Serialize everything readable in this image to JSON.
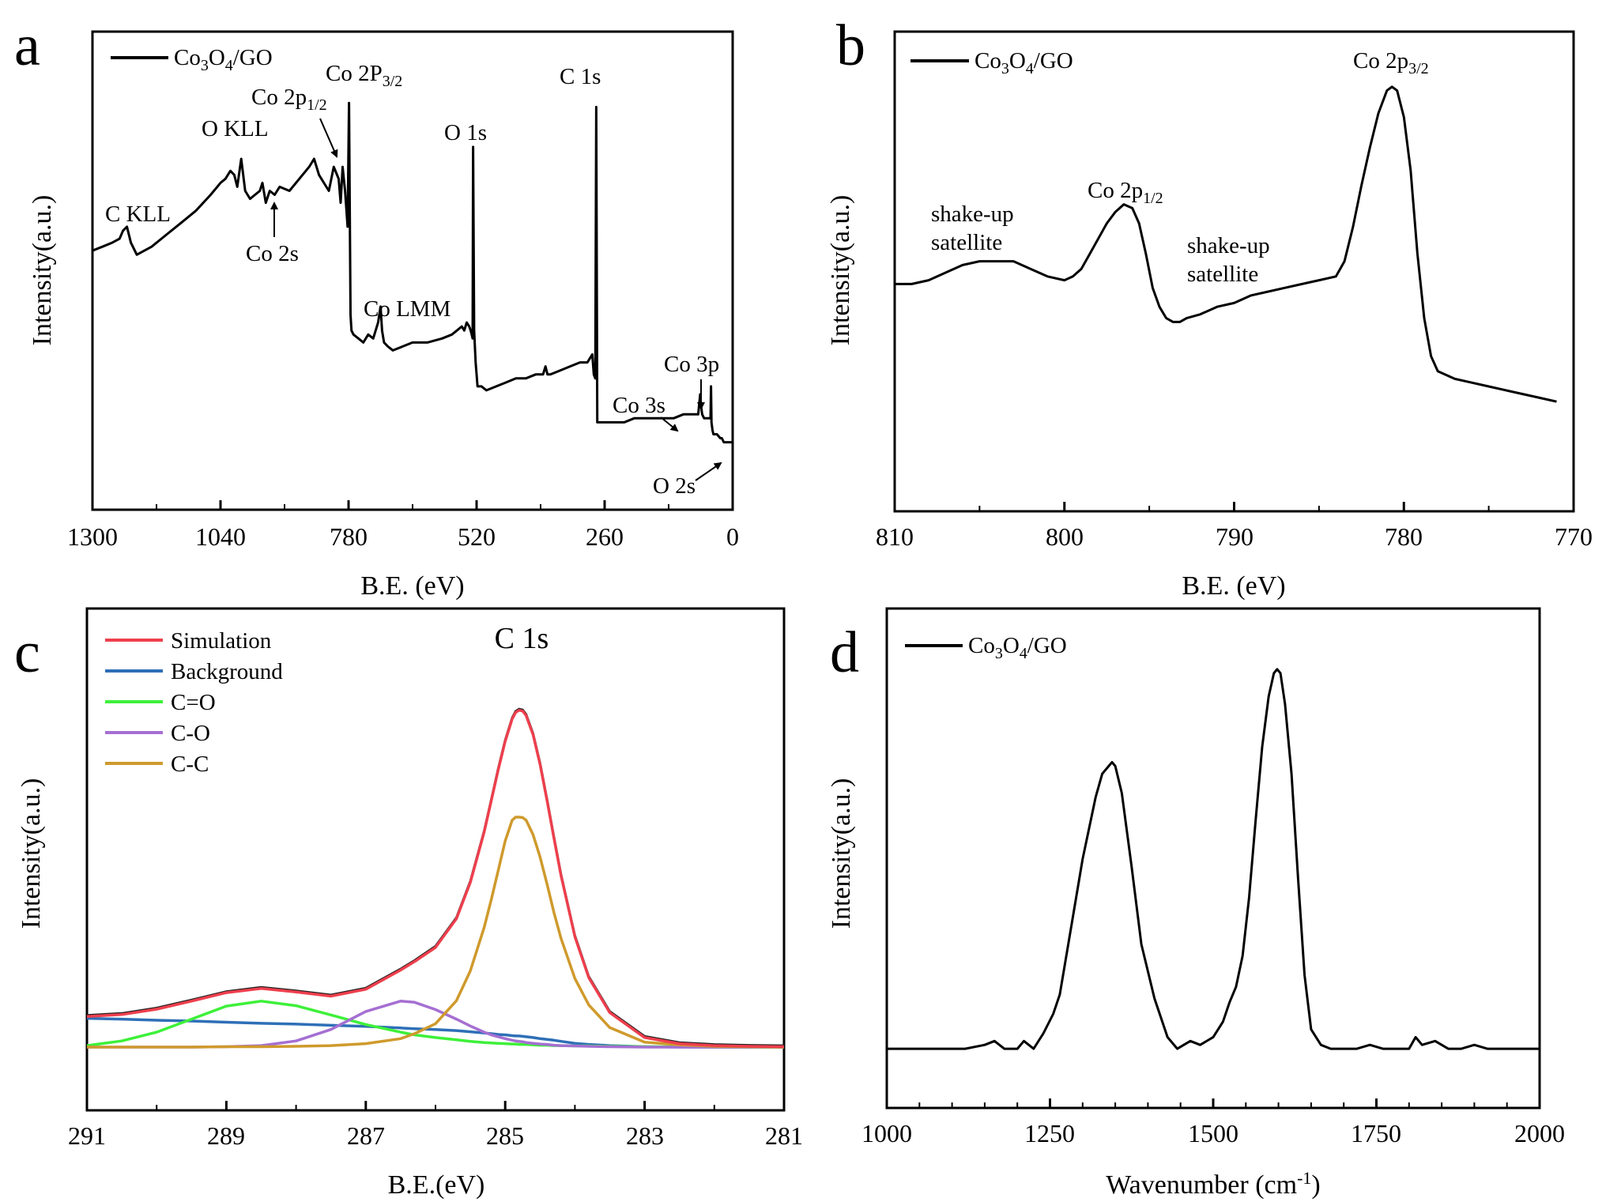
{
  "figure": {
    "panels": [
      "a",
      "b",
      "c",
      "d"
    ]
  },
  "chart_data": [
    {
      "id": "a",
      "type": "line",
      "panel_label": "a",
      "xlabel": "B.E. (eV)",
      "ylabel": "Intensity(a.u.)",
      "xlim": [
        1300,
        0
      ],
      "ylim": [
        0,
        100
      ],
      "x_ticks": [
        1300,
        1040,
        780,
        520,
        260,
        0
      ],
      "y_ticks": [],
      "legend": {
        "position": "top-left",
        "entries": [
          {
            "label": "Co3O4/GO",
            "color": "#000000"
          }
        ]
      },
      "series": [
        {
          "name": "Co3O4/GO",
          "color": "#000000",
          "x": [
            1300,
            1280,
            1260,
            1245,
            1238,
            1230,
            1222,
            1210,
            1180,
            1150,
            1120,
            1090,
            1060,
            1040,
            1030,
            1020,
            1012,
            1006,
            998,
            990,
            980,
            970,
            960,
            955,
            948,
            940,
            930,
            920,
            900,
            880,
            860,
            850,
            840,
            830,
            820,
            810,
            800,
            796,
            792,
            787,
            782,
            779,
            776,
            774,
            770,
            760,
            750,
            740,
            730,
            720,
            715,
            712,
            708,
            700,
            690,
            670,
            650,
            620,
            590,
            570,
            560,
            550,
            545,
            540,
            535,
            532,
            530,
            528,
            527,
            525,
            522,
            518,
            510,
            500,
            480,
            460,
            440,
            420,
            400,
            385,
            380,
            376,
            370,
            350,
            330,
            310,
            295,
            290,
            285,
            282,
            279,
            277,
            275,
            270,
            255,
            240,
            220,
            200,
            180,
            160,
            140,
            120,
            100,
            80,
            70,
            66,
            64,
            62,
            58,
            50,
            45,
            44,
            43,
            41,
            39,
            36,
            32,
            25,
            22,
            18,
            12,
            5,
            0
          ],
          "y": [
            56,
            57,
            58,
            59,
            61,
            62,
            58,
            55,
            57,
            60,
            63,
            66,
            70,
            73,
            74,
            76,
            75,
            72,
            79,
            71,
            69,
            70,
            71,
            73,
            68,
            71,
            70,
            72,
            71,
            74,
            77,
            79,
            75,
            73,
            71,
            77,
            74,
            68,
            77,
            71,
            62,
            93,
            40,
            36,
            35,
            34,
            33,
            35,
            34,
            38,
            42,
            36,
            33,
            32,
            31,
            32,
            33,
            33,
            34,
            35,
            36,
            37,
            36,
            38,
            37,
            36,
            35,
            34,
            82,
            36,
            28,
            22,
            22,
            21,
            22,
            23,
            24,
            24,
            25,
            25,
            27,
            25,
            25,
            26,
            27,
            28,
            28,
            29,
            30,
            25,
            24,
            92,
            13,
            13,
            13,
            13,
            13,
            14,
            14,
            14,
            14,
            14,
            15,
            15,
            15,
            20,
            17,
            15,
            14,
            14,
            14,
            22,
            13,
            11,
            10,
            10,
            10,
            9,
            9,
            8,
            8,
            8,
            8
          ]
        }
      ],
      "annotations": [
        {
          "text": "C KLL",
          "x": 1240,
          "y": 63
        },
        {
          "text": "O KLL",
          "x": 1020,
          "y": 80
        },
        {
          "text": "Co 2s",
          "x": 960,
          "y": 57
        },
        {
          "text": "Co 2p1/2",
          "x": 800,
          "y": 84
        },
        {
          "text": "Co 2P3/2",
          "x": 780,
          "y": 95
        },
        {
          "text": "Co LMM",
          "x": 720,
          "y": 42
        },
        {
          "text": "O 1s",
          "x": 520,
          "y": 83
        },
        {
          "text": "C 1s",
          "x": 270,
          "y": 95
        },
        {
          "text": "Co 3s",
          "x": 100,
          "y": 22
        },
        {
          "text": "Co 3p",
          "x": 100,
          "y": 32
        },
        {
          "text": "O 2s",
          "x": 80,
          "y": 5
        }
      ]
    },
    {
      "id": "b",
      "type": "line",
      "panel_label": "b",
      "xlabel": "B.E. (eV)",
      "ylabel": "Intensity(a.u.)",
      "xlim": [
        810,
        770
      ],
      "ylim": [
        0,
        100
      ],
      "x_ticks": [
        810,
        800,
        790,
        780,
        770
      ],
      "y_ticks": [],
      "legend": {
        "position": "top-left",
        "entries": [
          {
            "label": "Co3O4/GO",
            "color": "#000000"
          }
        ]
      },
      "series": [
        {
          "name": "Co3O4/GO",
          "color": "#000000",
          "x": [
            810,
            809,
            808,
            807,
            806,
            805,
            804,
            803,
            802,
            801,
            800,
            799.5,
            799,
            798.5,
            798,
            797.5,
            797,
            796.5,
            796,
            795.6,
            795.2,
            794.8,
            794.4,
            794,
            793.6,
            793.2,
            792.8,
            792,
            791,
            790,
            789,
            788,
            787,
            786,
            785,
            784,
            783.5,
            783,
            782.5,
            782,
            781.5,
            781,
            780.7,
            780.4,
            780,
            779.6,
            779.2,
            778.8,
            778.4,
            778,
            777,
            776,
            775,
            774,
            773,
            772,
            771
          ],
          "y": [
            47,
            47,
            48,
            50,
            52,
            53,
            53,
            53,
            51,
            49,
            48,
            49,
            51,
            55,
            59,
            63,
            66,
            68,
            67,
            63,
            55,
            46,
            41,
            38,
            37,
            37,
            38,
            39,
            41,
            42,
            44,
            45,
            46,
            47,
            48,
            49,
            53,
            62,
            73,
            83,
            92,
            98,
            99,
            98,
            91,
            77,
            55,
            38,
            28,
            24,
            22,
            21,
            20,
            19,
            18,
            17,
            16
          ]
        }
      ],
      "annotations": [
        {
          "text": "shake-up satellite",
          "x": 803.5,
          "y": 64
        },
        {
          "text": "Co 2p1/2",
          "x": 796,
          "y": 75
        },
        {
          "text": "shake-up satellite",
          "x": 788,
          "y": 57
        },
        {
          "text": "Co 2p3/2",
          "x": 781,
          "y": 105
        }
      ]
    },
    {
      "id": "c",
      "type": "line",
      "panel_label": "c",
      "title": "C 1s",
      "xlabel": "B.E.(eV)",
      "ylabel": "Intensity(a.u.)",
      "xlim": [
        291,
        281
      ],
      "ylim": [
        0,
        100
      ],
      "x_ticks": [
        291,
        289,
        287,
        285,
        283,
        281
      ],
      "y_ticks": [],
      "legend": {
        "position": "top-left",
        "entries": [
          {
            "label": "Simulation",
            "color": "#ee3f4d"
          },
          {
            "label": "Background",
            "color": "#2e6fb7"
          },
          {
            "label": "C=O",
            "color": "#3ef03a"
          },
          {
            "label": "C-O",
            "color": "#a56fd2"
          },
          {
            "label": "C-C",
            "color": "#cf9a2c"
          }
        ]
      },
      "x_grid": [
        291,
        290.5,
        290,
        289.5,
        289,
        288.5,
        288,
        287.5,
        287,
        286.5,
        286.3,
        286,
        285.7,
        285.5,
        285.3,
        285.2,
        285.1,
        285,
        284.9,
        284.85,
        284.8,
        284.75,
        284.7,
        284.6,
        284.5,
        284.4,
        284.3,
        284.2,
        284,
        283.8,
        283.5,
        283,
        282.5,
        282,
        281.5,
        281
      ],
      "series": [
        {
          "name": "Simulation",
          "color": "#ee3f4d",
          "y": [
            8.0,
            8.5,
            9.9,
            12.0,
            14.2,
            15.3,
            14.4,
            13.3,
            15.1,
            20.1,
            22.3,
            26.0,
            33.5,
            43.0,
            56.2,
            64.3,
            72.4,
            79.8,
            85.6,
            87.3,
            87.9,
            87.7,
            86.5,
            81.5,
            73.8,
            64.4,
            54.5,
            44.8,
            28.8,
            18.1,
            9.0,
            2.5,
            0.9,
            0.4,
            0.2,
            0.1
          ]
        },
        {
          "name": "Background",
          "color": "#2e6fb7",
          "y": [
            7.5,
            7.3,
            7.0,
            6.8,
            6.5,
            6.2,
            6.0,
            5.7,
            5.4,
            5.0,
            4.8,
            4.6,
            4.3,
            4.0,
            3.7,
            3.5,
            3.3,
            3.2,
            3.0,
            2.9,
            2.9,
            2.8,
            2.7,
            2.5,
            2.2,
            2.0,
            1.8,
            1.5,
            1.0,
            0.7,
            0.4,
            0.1,
            0.0,
            0.0,
            0.0,
            0.0
          ]
        },
        {
          "name": "C=O",
          "color": "#3ef03a",
          "y": [
            0.4,
            1.6,
            3.9,
            7.3,
            10.7,
            12.0,
            10.8,
            8.4,
            5.9,
            3.9,
            3.2,
            2.5,
            1.9,
            1.5,
            1.2,
            1.1,
            1.0,
            0.9,
            0.8,
            0.8,
            0.7,
            0.7,
            0.7,
            0.6,
            0.5,
            0.5,
            0.4,
            0.4,
            0.3,
            0.3,
            0.2,
            0.1,
            0.1,
            0.0,
            0.0,
            0.0
          ]
        },
        {
          "name": "C-O",
          "color": "#a56fd2",
          "y": [
            0.0,
            0.0,
            0.0,
            0.0,
            0.1,
            0.4,
            1.6,
            4.6,
            9.3,
            12.0,
            11.7,
            9.8,
            7.3,
            5.5,
            3.9,
            3.2,
            2.7,
            2.2,
            1.8,
            1.6,
            1.5,
            1.4,
            1.2,
            1.0,
            0.8,
            0.7,
            0.5,
            0.4,
            0.3,
            0.2,
            0.1,
            0.0,
            0.0,
            0.0,
            0.0,
            0.0
          ]
        },
        {
          "name": "C-C",
          "color": "#cf9a2c",
          "y": [
            0.0,
            0.0,
            0.0,
            0.0,
            0.1,
            0.1,
            0.2,
            0.4,
            0.9,
            2.2,
            3.5,
            6.1,
            12.1,
            19.9,
            31.3,
            38.5,
            46.1,
            53.8,
            59.2,
            60.0,
            60.0,
            59.9,
            59.2,
            55.4,
            49.6,
            42.6,
            35.1,
            28.4,
            17.9,
            11.0,
            5.1,
            1.3,
            0.6,
            0.2,
            0.1,
            0.0
          ]
        }
      ]
    },
    {
      "id": "d",
      "type": "line",
      "panel_label": "d",
      "xlabel": "Wavenumber (cm-1)",
      "ylabel": "Intensity(a.u.)",
      "xlim": [
        1000,
        2000
      ],
      "ylim": [
        0,
        100
      ],
      "x_ticks": [
        1000,
        1250,
        1500,
        1750,
        2000
      ],
      "y_ticks": [],
      "legend": {
        "position": "top-left",
        "entries": [
          {
            "label": "Co3O4/GO",
            "color": "#000000"
          }
        ]
      },
      "series": [
        {
          "name": "Co3O4/GO",
          "color": "#000000",
          "x": [
            1000,
            1030,
            1060,
            1090,
            1120,
            1150,
            1165,
            1180,
            1200,
            1210,
            1225,
            1240,
            1255,
            1265,
            1280,
            1300,
            1320,
            1330,
            1340,
            1345,
            1350,
            1360,
            1375,
            1390,
            1410,
            1430,
            1445,
            1455,
            1465,
            1480,
            1500,
            1515,
            1525,
            1535,
            1545,
            1555,
            1565,
            1575,
            1585,
            1593,
            1598,
            1603,
            1610,
            1620,
            1630,
            1640,
            1650,
            1665,
            1680,
            1700,
            1720,
            1740,
            1760,
            1780,
            1800,
            1810,
            1820,
            1840,
            1860,
            1880,
            1900,
            1920,
            1940,
            1960,
            1980,
            2000
          ],
          "y": [
            1,
            1,
            1,
            1,
            1,
            2,
            3,
            1,
            1,
            3,
            1,
            5,
            10,
            15,
            30,
            50,
            66,
            72,
            74,
            75,
            74,
            67,
            48,
            28,
            14,
            4,
            1,
            2,
            3,
            2,
            4,
            8,
            13,
            17,
            25,
            40,
            60,
            79,
            92,
            98,
            99,
            98,
            90,
            72,
            45,
            20,
            6,
            2,
            1,
            1,
            1,
            2,
            1,
            1,
            1,
            4,
            2,
            3,
            1,
            1,
            2,
            1,
            1,
            1,
            1,
            1
          ]
        }
      ]
    }
  ]
}
